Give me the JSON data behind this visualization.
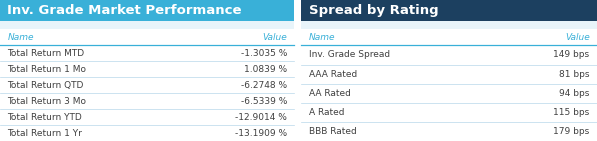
{
  "left_title": "Inv. Grade Market Performance",
  "left_title_bg": "#39b0d8",
  "left_title_color": "#ffffff",
  "left_col1": "Name",
  "left_col2": "Value",
  "left_rows": [
    [
      "Total Return MTD",
      "-1.3035 %"
    ],
    [
      "Total Return 1 Mo",
      "1.0839 %"
    ],
    [
      "Total Return QTD",
      "-6.2748 %"
    ],
    [
      "Total Return 3 Mo",
      "-6.5339 %"
    ],
    [
      "Total Return YTD",
      "-12.9014 %"
    ],
    [
      "Total Return 1 Yr",
      "-13.1909 %"
    ]
  ],
  "right_title": "Spread by Rating",
  "right_title_bg": "#1c4060",
  "right_title_color": "#ffffff",
  "right_col1": "Name",
  "right_col2": "Value",
  "right_rows": [
    [
      "Inv. Grade Spread",
      "149 bps"
    ],
    [
      "AAA Rated",
      "81 bps"
    ],
    [
      "AA Rated",
      "94 bps"
    ],
    [
      "A Rated",
      "115 bps"
    ],
    [
      "BBB Rated",
      "179 bps"
    ]
  ],
  "bg_color": "#ffffff",
  "text_color": "#404040",
  "header_text_color": "#39b0d8",
  "line_color": "#b8d8ea",
  "header_line_color": "#39b0d8",
  "font_size": 6.5,
  "header_font_size": 6.5,
  "title_font_size": 9.5,
  "gap_color": "#e8f4fa"
}
